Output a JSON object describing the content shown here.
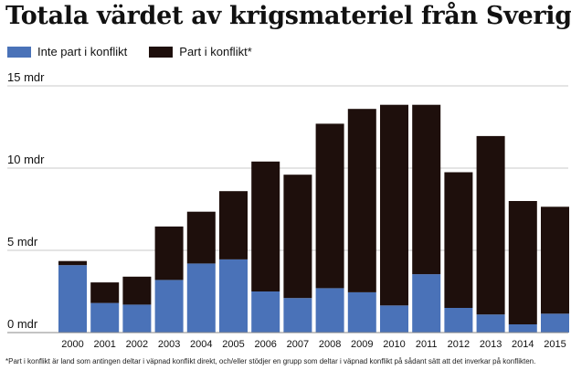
{
  "title": "Totala värdet av krigsmateriel från Sverige",
  "legend": [
    {
      "label": "Inte part i konflikt",
      "color": "#4a72b8"
    },
    {
      "label": "Part i konflikt*",
      "color": "#1e0f0c"
    }
  ],
  "footnote": "*Part i konflikt är land som antingen deltar i väpnad konflikt direkt, och/eller stödjer en grupp som deltar i väpnad konflikt på sådant sätt att det inverkar på konflikten.",
  "colors": {
    "grid": "#c8c8c8",
    "axis_text": "#111111"
  },
  "chart_data": {
    "type": "bar",
    "stacked": true,
    "categories": [
      "2000",
      "2001",
      "2002",
      "2003",
      "2004",
      "2005",
      "2006",
      "2007",
      "2008",
      "2009",
      "2010",
      "2011",
      "2012",
      "2013",
      "2014",
      "2015"
    ],
    "series": [
      {
        "name": "Inte part i konflikt",
        "color": "#4a72b8",
        "values": [
          4.1,
          1.8,
          1.7,
          3.2,
          4.2,
          4.45,
          2.5,
          2.1,
          2.7,
          2.45,
          1.65,
          3.55,
          1.5,
          1.1,
          0.5,
          1.15
        ]
      },
      {
        "name": "Part i konflikt*",
        "color": "#1e0f0c",
        "values": [
          0.25,
          1.25,
          1.7,
          3.25,
          3.15,
          4.15,
          7.9,
          7.5,
          10.0,
          11.15,
          12.2,
          10.3,
          8.25,
          10.85,
          7.5,
          6.5
        ]
      }
    ],
    "yticks": [
      0,
      5,
      10,
      15
    ],
    "ytick_labels": [
      "0 mdr",
      "5 mdr",
      "10 mdr",
      "15 mdr"
    ],
    "ylim": [
      0,
      15
    ],
    "grid": true,
    "legend_position": "top-left"
  }
}
